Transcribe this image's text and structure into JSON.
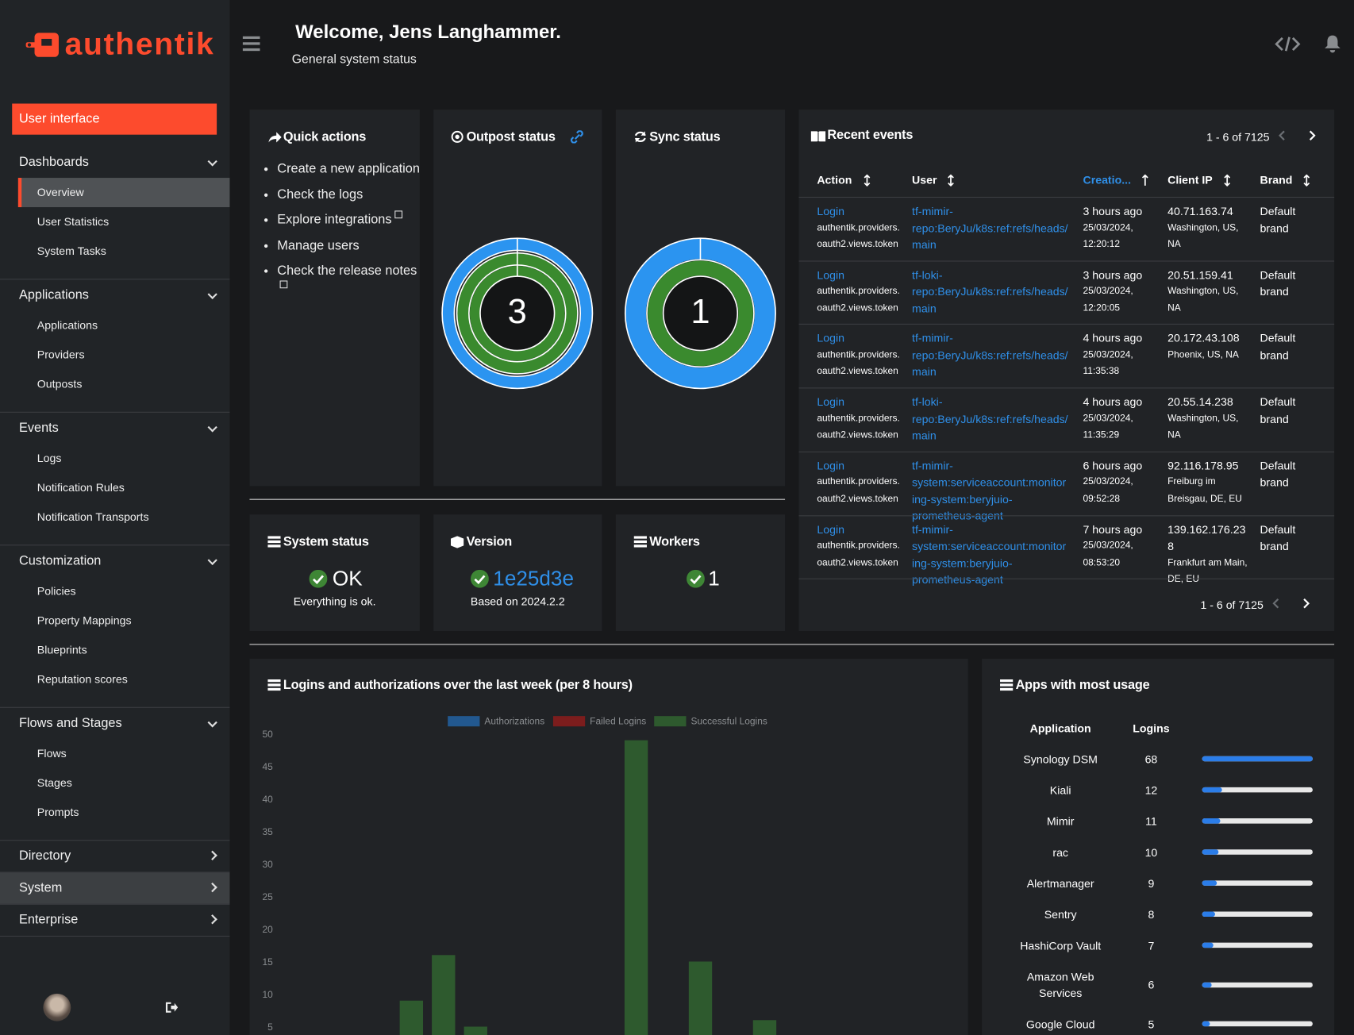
{
  "sidebar": {
    "logo": "authentik",
    "user_interface": "User interface",
    "sections": [
      {
        "title": "Dashboards",
        "items": [
          "Overview",
          "User Statistics",
          "System Tasks"
        ]
      },
      {
        "title": "Applications",
        "items": [
          "Applications",
          "Providers",
          "Outposts"
        ]
      },
      {
        "title": "Events",
        "items": [
          "Logs",
          "Notification Rules",
          "Notification Transports"
        ]
      },
      {
        "title": "Customization",
        "items": [
          "Policies",
          "Property Mappings",
          "Blueprints",
          "Reputation scores"
        ]
      },
      {
        "title": "Flows and Stages",
        "items": [
          "Flows",
          "Stages",
          "Prompts"
        ]
      },
      {
        "title": "Directory",
        "items": []
      },
      {
        "title": "System",
        "items": []
      },
      {
        "title": "Enterprise",
        "items": []
      }
    ]
  },
  "header": {
    "title": "Welcome, Jens Langhammer.",
    "subtitle": "General system status"
  },
  "quick_actions": {
    "title": "Quick actions",
    "items": [
      "Create a new application",
      "Check the logs",
      "Explore integrations",
      "Manage users",
      "Check the release notes"
    ]
  },
  "outpost_status": {
    "title": "Outpost status",
    "value": 3
  },
  "sync_status": {
    "title": "Sync status",
    "value": 1
  },
  "system_status": {
    "title": "System status",
    "value": "OK",
    "detail": "Everything is ok."
  },
  "version": {
    "title": "Version",
    "value": "1e25d3e",
    "detail": "Based on 2024.2.2"
  },
  "workers": {
    "title": "Workers",
    "value": 1
  },
  "recent_events": {
    "title": "Recent events",
    "pagination": "1 - 6 of 7125",
    "columns": [
      "Action",
      "User",
      "Creatio...",
      "Client IP",
      "Brand"
    ],
    "rows": [
      {
        "action": "Login",
        "app": "authentik.providers.oauth2.views.token",
        "user": "tf-mimir-repo:BeryJu/k8s:ref:refs/heads/main",
        "time": "3 hours ago",
        "date": "25/03/2024, 12:20:12",
        "ip": "40.71.163.74",
        "location": "Washington, US, NA",
        "brand": "Default brand"
      },
      {
        "action": "Login",
        "app": "authentik.providers.oauth2.views.token",
        "user": "tf-loki-repo:BeryJu/k8s:ref:refs/heads/main",
        "time": "3 hours ago",
        "date": "25/03/2024, 12:20:05",
        "ip": "20.51.159.41",
        "location": "Washington, US, NA",
        "brand": "Default brand"
      },
      {
        "action": "Login",
        "app": "authentik.providers.oauth2.views.token",
        "user": "tf-mimir-repo:BeryJu/k8s:ref:refs/heads/main",
        "time": "4 hours ago",
        "date": "25/03/2024, 11:35:38",
        "ip": "20.172.43.108",
        "location": "Phoenix, US, NA",
        "brand": "Default brand"
      },
      {
        "action": "Login",
        "app": "authentik.providers.oauth2.views.token",
        "user": "tf-loki-repo:BeryJu/k8s:ref:refs/heads/main",
        "time": "4 hours ago",
        "date": "25/03/2024, 11:35:29",
        "ip": "20.55.14.238",
        "location": "Washington, US, NA",
        "brand": "Default brand"
      },
      {
        "action": "Login",
        "app": "authentik.providers.oauth2.views.token",
        "user": "tf-mimir-system:serviceaccount:monitoring-system:beryjuio-prometheus-agent",
        "time": "6 hours ago",
        "date": "25/03/2024, 09:52:28",
        "ip": "92.116.178.95",
        "location": "Freiburg im Breisgau, DE, EU",
        "brand": "Default brand"
      },
      {
        "action": "Login",
        "app": "authentik.providers.oauth2.views.token",
        "user": "tf-mimir-system:serviceaccount:monitoring-system:beryjuio-prometheus-agent",
        "time": "7 hours ago",
        "date": "25/03/2024, 08:53:20",
        "ip": "139.162.176.238",
        "location": "Frankfurt am Main, DE, EU",
        "brand": "Default brand"
      }
    ]
  },
  "chart_data": {
    "type": "bar",
    "title": "Logins and authorizations over the last week (per 8 hours)",
    "stacked": true,
    "categories": [
      null,
      null,
      null,
      null,
      null,
      null,
      null,
      null,
      null,
      null,
      null,
      null,
      null,
      null,
      null,
      null,
      null,
      null,
      null,
      null,
      null
    ],
    "series": [
      {
        "name": "Authorizations",
        "color": "#22588f",
        "values": [
          0,
          0,
          0,
          0,
          0,
          0,
          0,
          0,
          0,
          0,
          0,
          0,
          0,
          0,
          0,
          0,
          0,
          0,
          0,
          0,
          0
        ]
      },
      {
        "name": "Failed Logins",
        "color": "#7c1d1d",
        "values": [
          0,
          0,
          0,
          0,
          0,
          0,
          0,
          0,
          0,
          0,
          0,
          0,
          0,
          0,
          0,
          0,
          0,
          0,
          0,
          0,
          0
        ]
      },
      {
        "name": "Successful Logins",
        "color": "#2e5a2e",
        "values": [
          0,
          0,
          0,
          0,
          9,
          16,
          5,
          0,
          0,
          0,
          0,
          49,
          0,
          15,
          0,
          6,
          0,
          0,
          0,
          0,
          0
        ]
      }
    ],
    "ylim": [
      0,
      50
    ],
    "yticks": [
      5,
      10,
      15,
      20,
      25,
      30,
      35,
      40,
      45,
      50
    ],
    "legend": "top"
  },
  "app_usage": {
    "title": "Apps with most usage",
    "columns": [
      "Application",
      "Logins"
    ],
    "rows": [
      {
        "name": "Synology DSM",
        "logins": 68
      },
      {
        "name": "Kiali",
        "logins": 12
      },
      {
        "name": "Mimir",
        "logins": 11
      },
      {
        "name": "rac",
        "logins": 10
      },
      {
        "name": "Alertmanager",
        "logins": 9
      },
      {
        "name": "Sentry",
        "logins": 8
      },
      {
        "name": "HashiCorp Vault",
        "logins": 7
      },
      {
        "name": "Amazon Web Services",
        "logins": 6
      },
      {
        "name": "Google Cloud",
        "logins": 5
      }
    ]
  }
}
